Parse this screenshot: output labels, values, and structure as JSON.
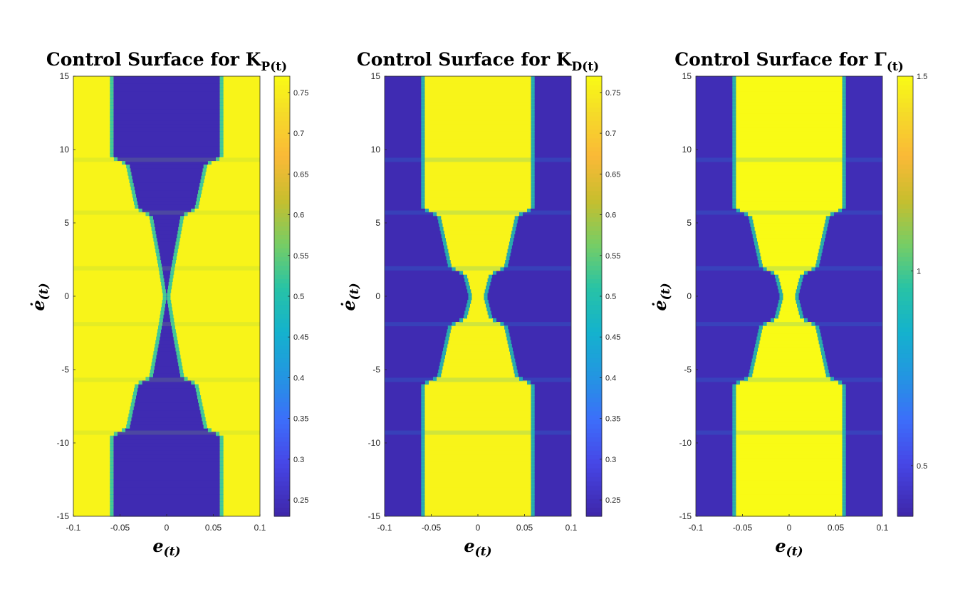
{
  "chart_data": [
    {
      "type": "heatmap",
      "title": {
        "main": "Control Surface for K",
        "subscript": "P(t)"
      },
      "xlabel": {
        "main": "e",
        "subscript": "(t)"
      },
      "ylabel": {
        "main": "ė",
        "subscript": "(t)"
      },
      "xlim": [
        -0.1,
        0.1
      ],
      "ylim": [
        -15,
        15
      ],
      "xticks": [
        "-0.1",
        "-0.05",
        "0",
        "0.05",
        "0.1"
      ],
      "yticks": [
        "-15",
        "-10",
        "-5",
        "0",
        "5",
        "10",
        "15"
      ],
      "colormap": "parula",
      "clim": [
        0.23,
        0.77
      ],
      "colorbar_ticks": [
        "0.25",
        "0.3",
        "0.35",
        "0.4",
        "0.45",
        "0.5",
        "0.55",
        "0.6",
        "0.65",
        "0.7",
        "0.75"
      ],
      "low_region_edges": [
        [
          -15,
          0.057
        ],
        [
          -9.5,
          0.057
        ],
        [
          -9,
          0.04
        ],
        [
          -6,
          0.03
        ],
        [
          -5.5,
          0.015
        ],
        [
          -2,
          0.005
        ],
        [
          0,
          0.0
        ],
        [
          2,
          0.005
        ],
        [
          5.5,
          0.015
        ],
        [
          6,
          0.03
        ],
        [
          9,
          0.04
        ],
        [
          9.5,
          0.057
        ],
        [
          15,
          0.057
        ]
      ],
      "inner_value": 0.24,
      "outer_value": 0.76,
      "structure": "low values in central band, high values outside"
    },
    {
      "type": "heatmap",
      "title": {
        "main": "Control Surface for K",
        "subscript": "D(t)"
      },
      "xlabel": {
        "main": "e",
        "subscript": "(t)"
      },
      "ylabel": {
        "main": "ė",
        "subscript": "(t)"
      },
      "xlim": [
        -0.1,
        0.1
      ],
      "ylim": [
        -15,
        15
      ],
      "xticks": [
        "-0.1",
        "-0.05",
        "0",
        "0.05",
        "0.1"
      ],
      "yticks": [
        "-15",
        "-10",
        "-5",
        "0",
        "5",
        "10",
        "15"
      ],
      "colormap": "parula",
      "clim": [
        0.23,
        0.77
      ],
      "colorbar_ticks": [
        "0.25",
        "0.3",
        "0.35",
        "0.4",
        "0.45",
        "0.5",
        "0.55",
        "0.6",
        "0.65",
        "0.7",
        "0.75"
      ],
      "high_region_edges": [
        [
          -15,
          0.057
        ],
        [
          -6,
          0.057
        ],
        [
          -5.5,
          0.04
        ],
        [
          -2,
          0.028
        ],
        [
          -1.5,
          0.012
        ],
        [
          0,
          0.006
        ],
        [
          1.5,
          0.012
        ],
        [
          2,
          0.028
        ],
        [
          5.5,
          0.04
        ],
        [
          6,
          0.057
        ],
        [
          15,
          0.057
        ]
      ],
      "inner_value": 0.76,
      "outer_value": 0.24,
      "structure": "high values in central band, low values outside"
    },
    {
      "type": "heatmap",
      "title": {
        "main": "Control Surface for Γ",
        "subscript": "(t)"
      },
      "xlabel": {
        "main": "e",
        "subscript": "(t)"
      },
      "ylabel": {
        "main": "ė",
        "subscript": "(t)"
      },
      "xlim": [
        -0.1,
        0.1
      ],
      "ylim": [
        -15,
        15
      ],
      "xticks": [
        "-0.1",
        "-0.05",
        "0",
        "0.05",
        "0.1"
      ],
      "yticks": [
        "-15",
        "-10",
        "-5",
        "0",
        "5",
        "10",
        "15"
      ],
      "colormap": "parula",
      "clim": [
        0.37,
        1.5
      ],
      "colorbar_ticks": [
        "0.5",
        "1",
        "1.5"
      ],
      "colorbar_tick_values": [
        0.5,
        1,
        1.5
      ],
      "high_region_edges": [
        [
          -15,
          0.057
        ],
        [
          -6,
          0.057
        ],
        [
          -5.5,
          0.04
        ],
        [
          -2,
          0.028
        ],
        [
          -1.5,
          0.012
        ],
        [
          0,
          0.006
        ],
        [
          1.5,
          0.012
        ],
        [
          2,
          0.028
        ],
        [
          5.5,
          0.04
        ],
        [
          6,
          0.057
        ],
        [
          15,
          0.057
        ]
      ],
      "inner_value": 1.5,
      "outer_value": 0.4,
      "structure": "high values in central band, low values outside"
    }
  ]
}
